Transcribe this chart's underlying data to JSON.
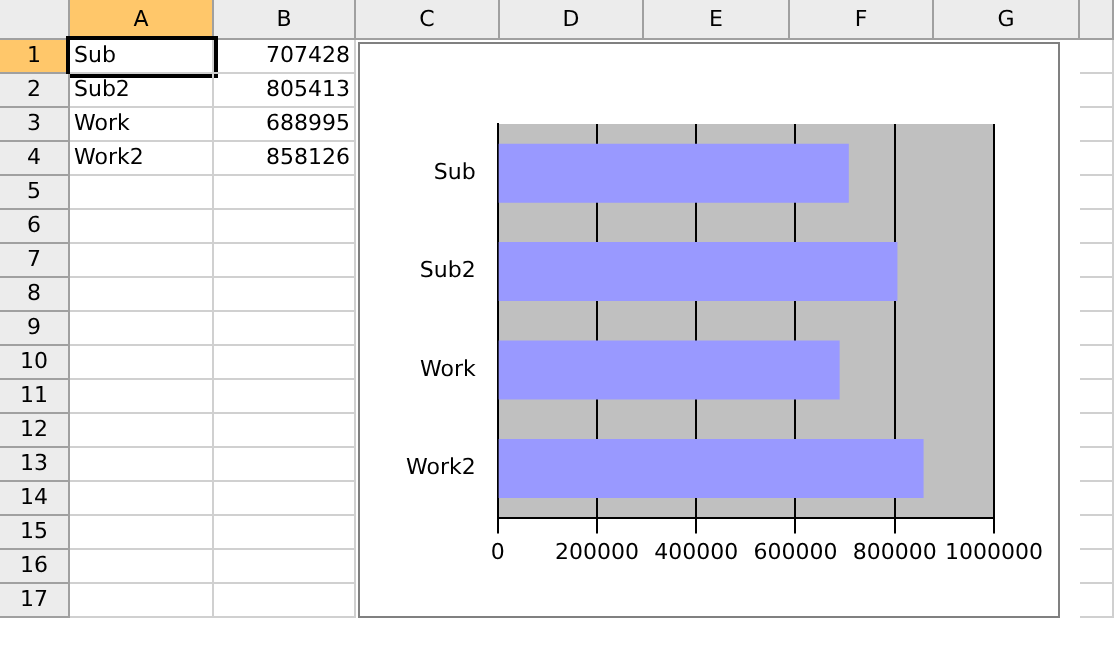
{
  "chart_data": {
    "type": "bar",
    "orientation": "horizontal",
    "categories": [
      "Sub",
      "Sub2",
      "Work",
      "Work2"
    ],
    "values": [
      707428,
      805413,
      688995,
      858126
    ],
    "color": "#9999ff",
    "xlim": [
      0,
      1000000
    ],
    "xticks": [
      0,
      200000,
      400000,
      600000,
      800000,
      1000000
    ],
    "grid": "x",
    "annotations": [
      "A",
      "B",
      "C",
      "D",
      "E",
      "F",
      "G",
      "1",
      "2",
      "3",
      "4",
      "5",
      "6",
      "7",
      "8",
      "9",
      "10",
      "11",
      "12",
      "13",
      "14",
      "15",
      "16",
      "17",
      "707428",
      "805413",
      "688995",
      "858126"
    ]
  }
}
